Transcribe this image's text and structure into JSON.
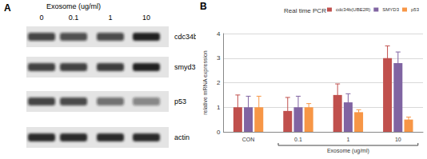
{
  "blot": {
    "panel_label": "A",
    "title": "Exosome (ug/ml)",
    "lanes": [
      "0",
      "0.1",
      "1",
      "10"
    ],
    "bands": [
      {
        "name": "cdc34b",
        "intensity": [
          0.75,
          0.7,
          0.72,
          0.95
        ]
      },
      {
        "name": "smyd3",
        "intensity": [
          0.8,
          0.8,
          0.82,
          0.95
        ]
      },
      {
        "name": "p53",
        "intensity": [
          0.75,
          0.72,
          0.55,
          0.45
        ]
      },
      {
        "name": "actin",
        "intensity": [
          0.9,
          0.9,
          0.9,
          0.9
        ]
      }
    ]
  },
  "chart_data": {
    "panel_label": "B",
    "type": "bar",
    "title": "Real time PCR",
    "categories": [
      "CON",
      "0.1",
      "1",
      "10"
    ],
    "x_label": "Exosome (ug/ml)",
    "y_label": "relative mRNA expression",
    "ylim": [
      0,
      4
    ],
    "yticks": [
      0,
      1,
      2,
      3,
      4
    ],
    "grid": true,
    "legend": "top-right",
    "series": [
      {
        "name": "cdc34b(UBE2R)",
        "color": "#C0504D",
        "values": [
          1.0,
          0.85,
          1.5,
          3.0
        ],
        "errors": [
          0.5,
          0.55,
          0.45,
          0.5
        ]
      },
      {
        "name": "SMYD3",
        "color": "#8064A2",
        "values": [
          1.0,
          1.0,
          1.2,
          2.8
        ],
        "errors": [
          0.45,
          0.45,
          0.35,
          0.45
        ]
      },
      {
        "name": "p53",
        "color": "#F79646",
        "values": [
          1.0,
          1.0,
          0.8,
          0.5
        ],
        "errors": [
          0.45,
          0.15,
          0.1,
          0.1
        ]
      }
    ]
  }
}
